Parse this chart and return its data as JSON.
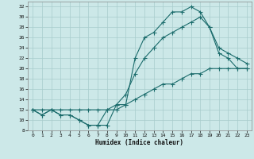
{
  "xlabel": "Humidex (Indice chaleur)",
  "bg_color": "#cce8e8",
  "line_color": "#1a6b6b",
  "grid_color": "#a8cccc",
  "xlim": [
    -0.5,
    23.5
  ],
  "ylim": [
    8,
    33
  ],
  "yticks": [
    8,
    10,
    12,
    14,
    16,
    18,
    20,
    22,
    24,
    26,
    28,
    30,
    32
  ],
  "xticks": [
    0,
    1,
    2,
    3,
    4,
    5,
    6,
    7,
    8,
    9,
    10,
    11,
    12,
    13,
    14,
    15,
    16,
    17,
    18,
    19,
    20,
    21,
    22,
    23
  ],
  "line1_x": [
    0,
    1,
    2,
    3,
    4,
    5,
    6,
    7,
    8,
    9,
    10,
    11,
    12,
    13,
    14,
    15,
    16,
    17,
    18,
    19,
    20,
    21,
    22,
    23
  ],
  "line1_y": [
    12,
    11,
    12,
    11,
    11,
    10,
    9,
    9,
    9,
    13,
    13,
    22,
    26,
    27,
    29,
    31,
    31,
    32,
    31,
    28,
    23,
    22,
    20,
    20
  ],
  "line2_x": [
    0,
    1,
    2,
    3,
    4,
    5,
    6,
    7,
    8,
    9,
    10,
    11,
    12,
    13,
    14,
    15,
    16,
    17,
    18,
    19,
    20,
    21,
    22,
    23
  ],
  "line2_y": [
    12,
    11,
    12,
    11,
    11,
    10,
    9,
    9,
    12,
    13,
    15,
    19,
    22,
    24,
    26,
    27,
    28,
    29,
    30,
    28,
    24,
    23,
    22,
    21
  ],
  "line3_x": [
    0,
    1,
    2,
    3,
    4,
    5,
    6,
    7,
    8,
    9,
    10,
    11,
    12,
    13,
    14,
    15,
    16,
    17,
    18,
    19,
    20,
    21,
    22,
    23
  ],
  "line3_y": [
    12,
    12,
    12,
    12,
    12,
    12,
    12,
    12,
    12,
    12,
    13,
    14,
    15,
    16,
    17,
    17,
    18,
    19,
    19,
    20,
    20,
    20,
    20,
    20
  ]
}
